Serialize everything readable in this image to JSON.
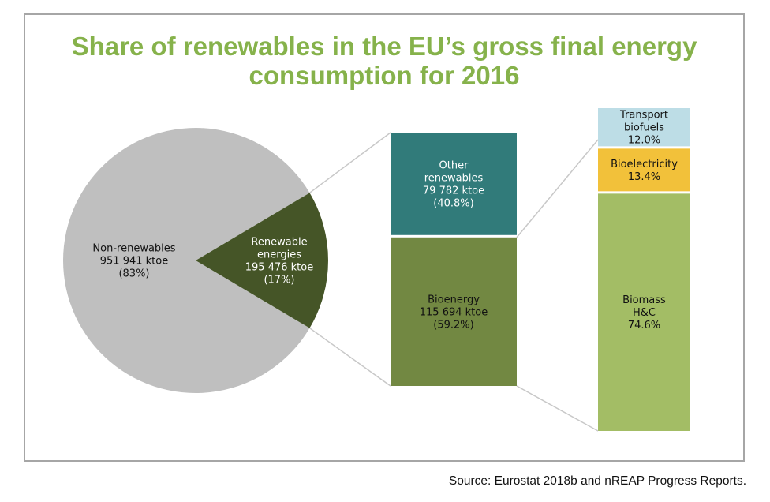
{
  "title_lines": [
    "Share of renewables in the EU’s gross final energy",
    "consumption for 2016"
  ],
  "source": "Source: Eurostat 2018b and nREAP Progress Reports.",
  "colors": {
    "title": "#86b24b",
    "non_renewables": "#bfbfbf",
    "renewables": "#455527",
    "other_renewables": "#317b7a",
    "bioenergy": "#728842",
    "transport_biofuels": "#bddde6",
    "bioelectricity": "#f2c13a",
    "biomass": "#a3bd65",
    "connector": "#c8c8c8"
  },
  "chart_data": [
    {
      "type": "pie",
      "slices": [
        {
          "key": "non",
          "label_lines": [
            "Non-renewables",
            "951 941 ktoe",
            "(83%)"
          ],
          "value": 951941,
          "share": 83,
          "color": "#bfbfbf",
          "text_color": "#111111"
        },
        {
          "key": "ren",
          "label_lines": [
            "Renewable",
            "energies",
            "195 476 ktoe",
            "(17%)"
          ],
          "value": 195476,
          "share": 17,
          "color": "#455527",
          "text_color": "#ffffff"
        }
      ]
    },
    {
      "type": "bar",
      "stacked": true,
      "segments": [
        {
          "key": "other",
          "label_lines": [
            "Other",
            "renewables",
            "79 782 ktoe",
            "(40.8%)"
          ],
          "value": 79782,
          "share": 40.8,
          "color": "#317b7a",
          "text_color": "#ffffff"
        },
        {
          "key": "bio",
          "label_lines": [
            "Bioenergy",
            "115 694 ktoe",
            "(59.2%)"
          ],
          "value": 115694,
          "share": 59.2,
          "color": "#728842",
          "text_color": "#111111"
        }
      ]
    },
    {
      "type": "bar",
      "stacked": true,
      "segments": [
        {
          "key": "transport",
          "label_lines": [
            "Transport",
            "biofuels",
            "12.0%"
          ],
          "share": 12.0,
          "color": "#bddde6",
          "text_color": "#111111"
        },
        {
          "key": "bioelec",
          "label_lines": [
            "Bioelectricity",
            "13.4%"
          ],
          "share": 13.4,
          "color": "#f2c13a",
          "text_color": "#111111"
        },
        {
          "key": "biomass",
          "label_lines": [
            "Biomass",
            "H&C",
            "74.6%"
          ],
          "share": 74.6,
          "color": "#a3bd65",
          "text_color": "#111111"
        }
      ]
    }
  ]
}
